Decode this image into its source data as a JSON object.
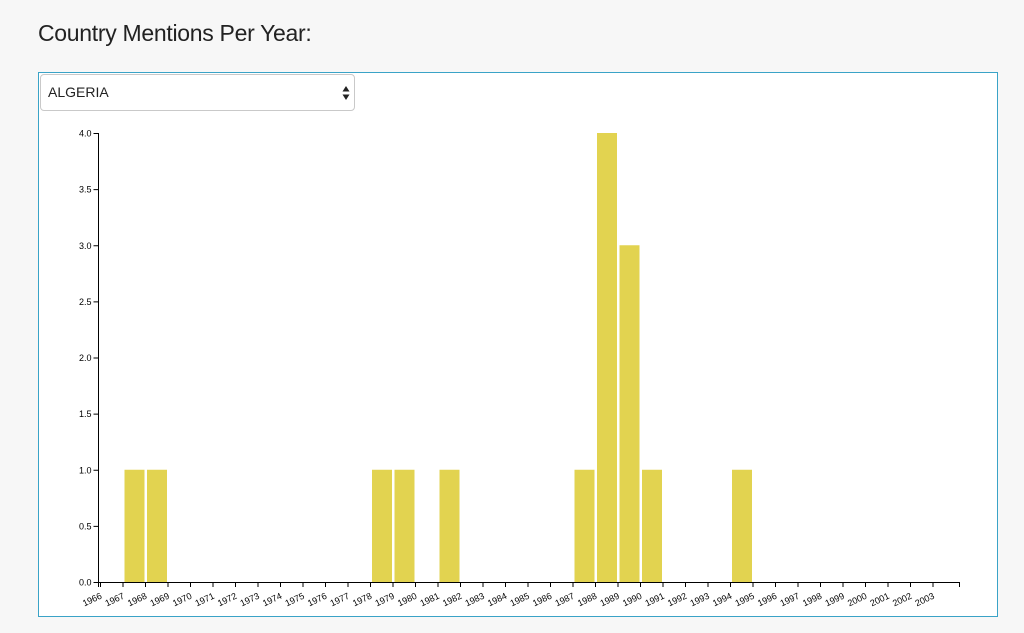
{
  "page": {
    "title": "Country Mentions Per Year:"
  },
  "country_select": {
    "selected": "ALGERIA"
  },
  "colors": {
    "bar": "#e2d350",
    "panel_border": "#3aa3c7"
  },
  "chart_data": {
    "type": "bar",
    "categories": [
      "1966",
      "1967",
      "1968",
      "1969",
      "1970",
      "1971",
      "1972",
      "1973",
      "1974",
      "1975",
      "1976",
      "1977",
      "1978",
      "1979",
      "1980",
      "1981",
      "1982",
      "1983",
      "1984",
      "1985",
      "1986",
      "1987",
      "1988",
      "1989",
      "1990",
      "1991",
      "1992",
      "1993",
      "1994",
      "1995",
      "1996",
      "1997",
      "1998",
      "1999",
      "2000",
      "2001",
      "2002",
      "2003"
    ],
    "values": [
      0,
      1,
      1,
      0,
      0,
      0,
      0,
      0,
      0,
      0,
      0,
      0,
      1,
      1,
      0,
      1,
      0,
      0,
      0,
      0,
      0,
      1,
      4,
      3,
      1,
      0,
      0,
      0,
      1,
      0,
      0,
      0,
      0,
      0,
      0,
      0,
      0,
      0
    ],
    "yticks": [
      "0.0",
      "0.5",
      "1.0",
      "1.5",
      "2.0",
      "2.5",
      "3.0",
      "3.5",
      "4.0"
    ],
    "ylim": [
      0,
      4
    ],
    "xlabel": "",
    "ylabel": "",
    "grid": false,
    "legend": "none"
  }
}
